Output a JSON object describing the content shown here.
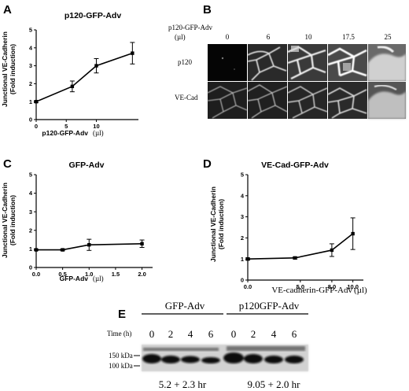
{
  "panels": {
    "A": {
      "letter": "A",
      "title": "p120-GFP-Adv",
      "ylabel_line1": "Junctional VE-Cadherin",
      "ylabel_line2": "(Fold induction)",
      "xlabel": "p120-GFP-Adv",
      "xunit": "(µl)"
    },
    "B": {
      "letter": "B",
      "header_line1": "p120-GFP-Adv",
      "header_line2": "(µl)",
      "columns": [
        "0",
        "6",
        "10",
        "17.5",
        "25"
      ],
      "rows": [
        "p120",
        "VE-Cad"
      ]
    },
    "C": {
      "letter": "C",
      "title": "GFP-Adv",
      "ylabel_line1": "Junctional VE-Cadherin",
      "ylabel_line2": "(Fold induction)",
      "xlabel": "GFP-Adv",
      "xunit": "(µl)"
    },
    "D": {
      "letter": "D",
      "title": "VE-Cad-GFP-Adv",
      "ylabel_line1": "Junctional VE-Cadherin",
      "ylabel_line2": "(Fold induction)",
      "xlabel": "VE-cadherin-GFP-Adv",
      "xunit": "(µl)"
    },
    "E": {
      "letter": "E",
      "group1": "GFP-Adv",
      "group2": "p120GFP-Adv",
      "time_label": "Time (h)",
      "times": [
        "0",
        "2",
        "4",
        "6",
        "0",
        "2",
        "4",
        "6"
      ],
      "marker_150": "150 kDa",
      "marker_100": "100 kDa",
      "halflife1": "5.2 + 2.3 hr",
      "halflife2": "9.05 + 2.0 hr"
    }
  },
  "chart_data": [
    {
      "panel": "A",
      "type": "line",
      "title": "p120-GFP-Adv",
      "xlabel": "p120-GFP-Adv (µl)",
      "ylabel": "Junctional VE-Cadherin (Fold induction)",
      "xlim": [
        0,
        17
      ],
      "ylim": [
        0,
        5
      ],
      "xticks": [
        0,
        5,
        10
      ],
      "yticks": [
        0,
        1,
        2,
        3,
        4,
        5
      ],
      "x": [
        0,
        6,
        10,
        16
      ],
      "y": [
        1.0,
        1.85,
        3.0,
        3.7
      ],
      "err": [
        0.05,
        0.3,
        0.4,
        0.6
      ]
    },
    {
      "panel": "C",
      "type": "line",
      "title": "GFP-Adv",
      "xlabel": "GFP-Adv (µl)",
      "ylabel": "Junctional VE-Cadherin (Fold induction)",
      "xlim": [
        0,
        2.2
      ],
      "ylim": [
        0,
        5
      ],
      "xticks": [
        0.0,
        0.5,
        1.0,
        1.5,
        2.0
      ],
      "yticks": [
        0,
        1,
        2,
        3,
        4,
        5
      ],
      "x": [
        0,
        0.5,
        1.0,
        2.0
      ],
      "y": [
        0.95,
        0.95,
        1.22,
        1.28
      ],
      "err": [
        0.03,
        0.05,
        0.3,
        0.2
      ]
    },
    {
      "panel": "D",
      "type": "line",
      "title": "VE-Cad-GFP-Adv",
      "xlabel": "VE-cadherin-GFP-Adv (µl)",
      "ylabel": "Junctional VE-Cadherin (Fold induction)",
      "xlim": [
        0,
        11
      ],
      "ylim": [
        0,
        5
      ],
      "xticks": [
        0.0,
        5.0,
        8.0,
        10.0
      ],
      "yticks": [
        0,
        1,
        2,
        3,
        4,
        5
      ],
      "x": [
        0,
        4.5,
        8,
        10
      ],
      "y": [
        1.0,
        1.05,
        1.42,
        2.2
      ],
      "err": [
        0.05,
        0.05,
        0.3,
        0.75
      ]
    }
  ]
}
